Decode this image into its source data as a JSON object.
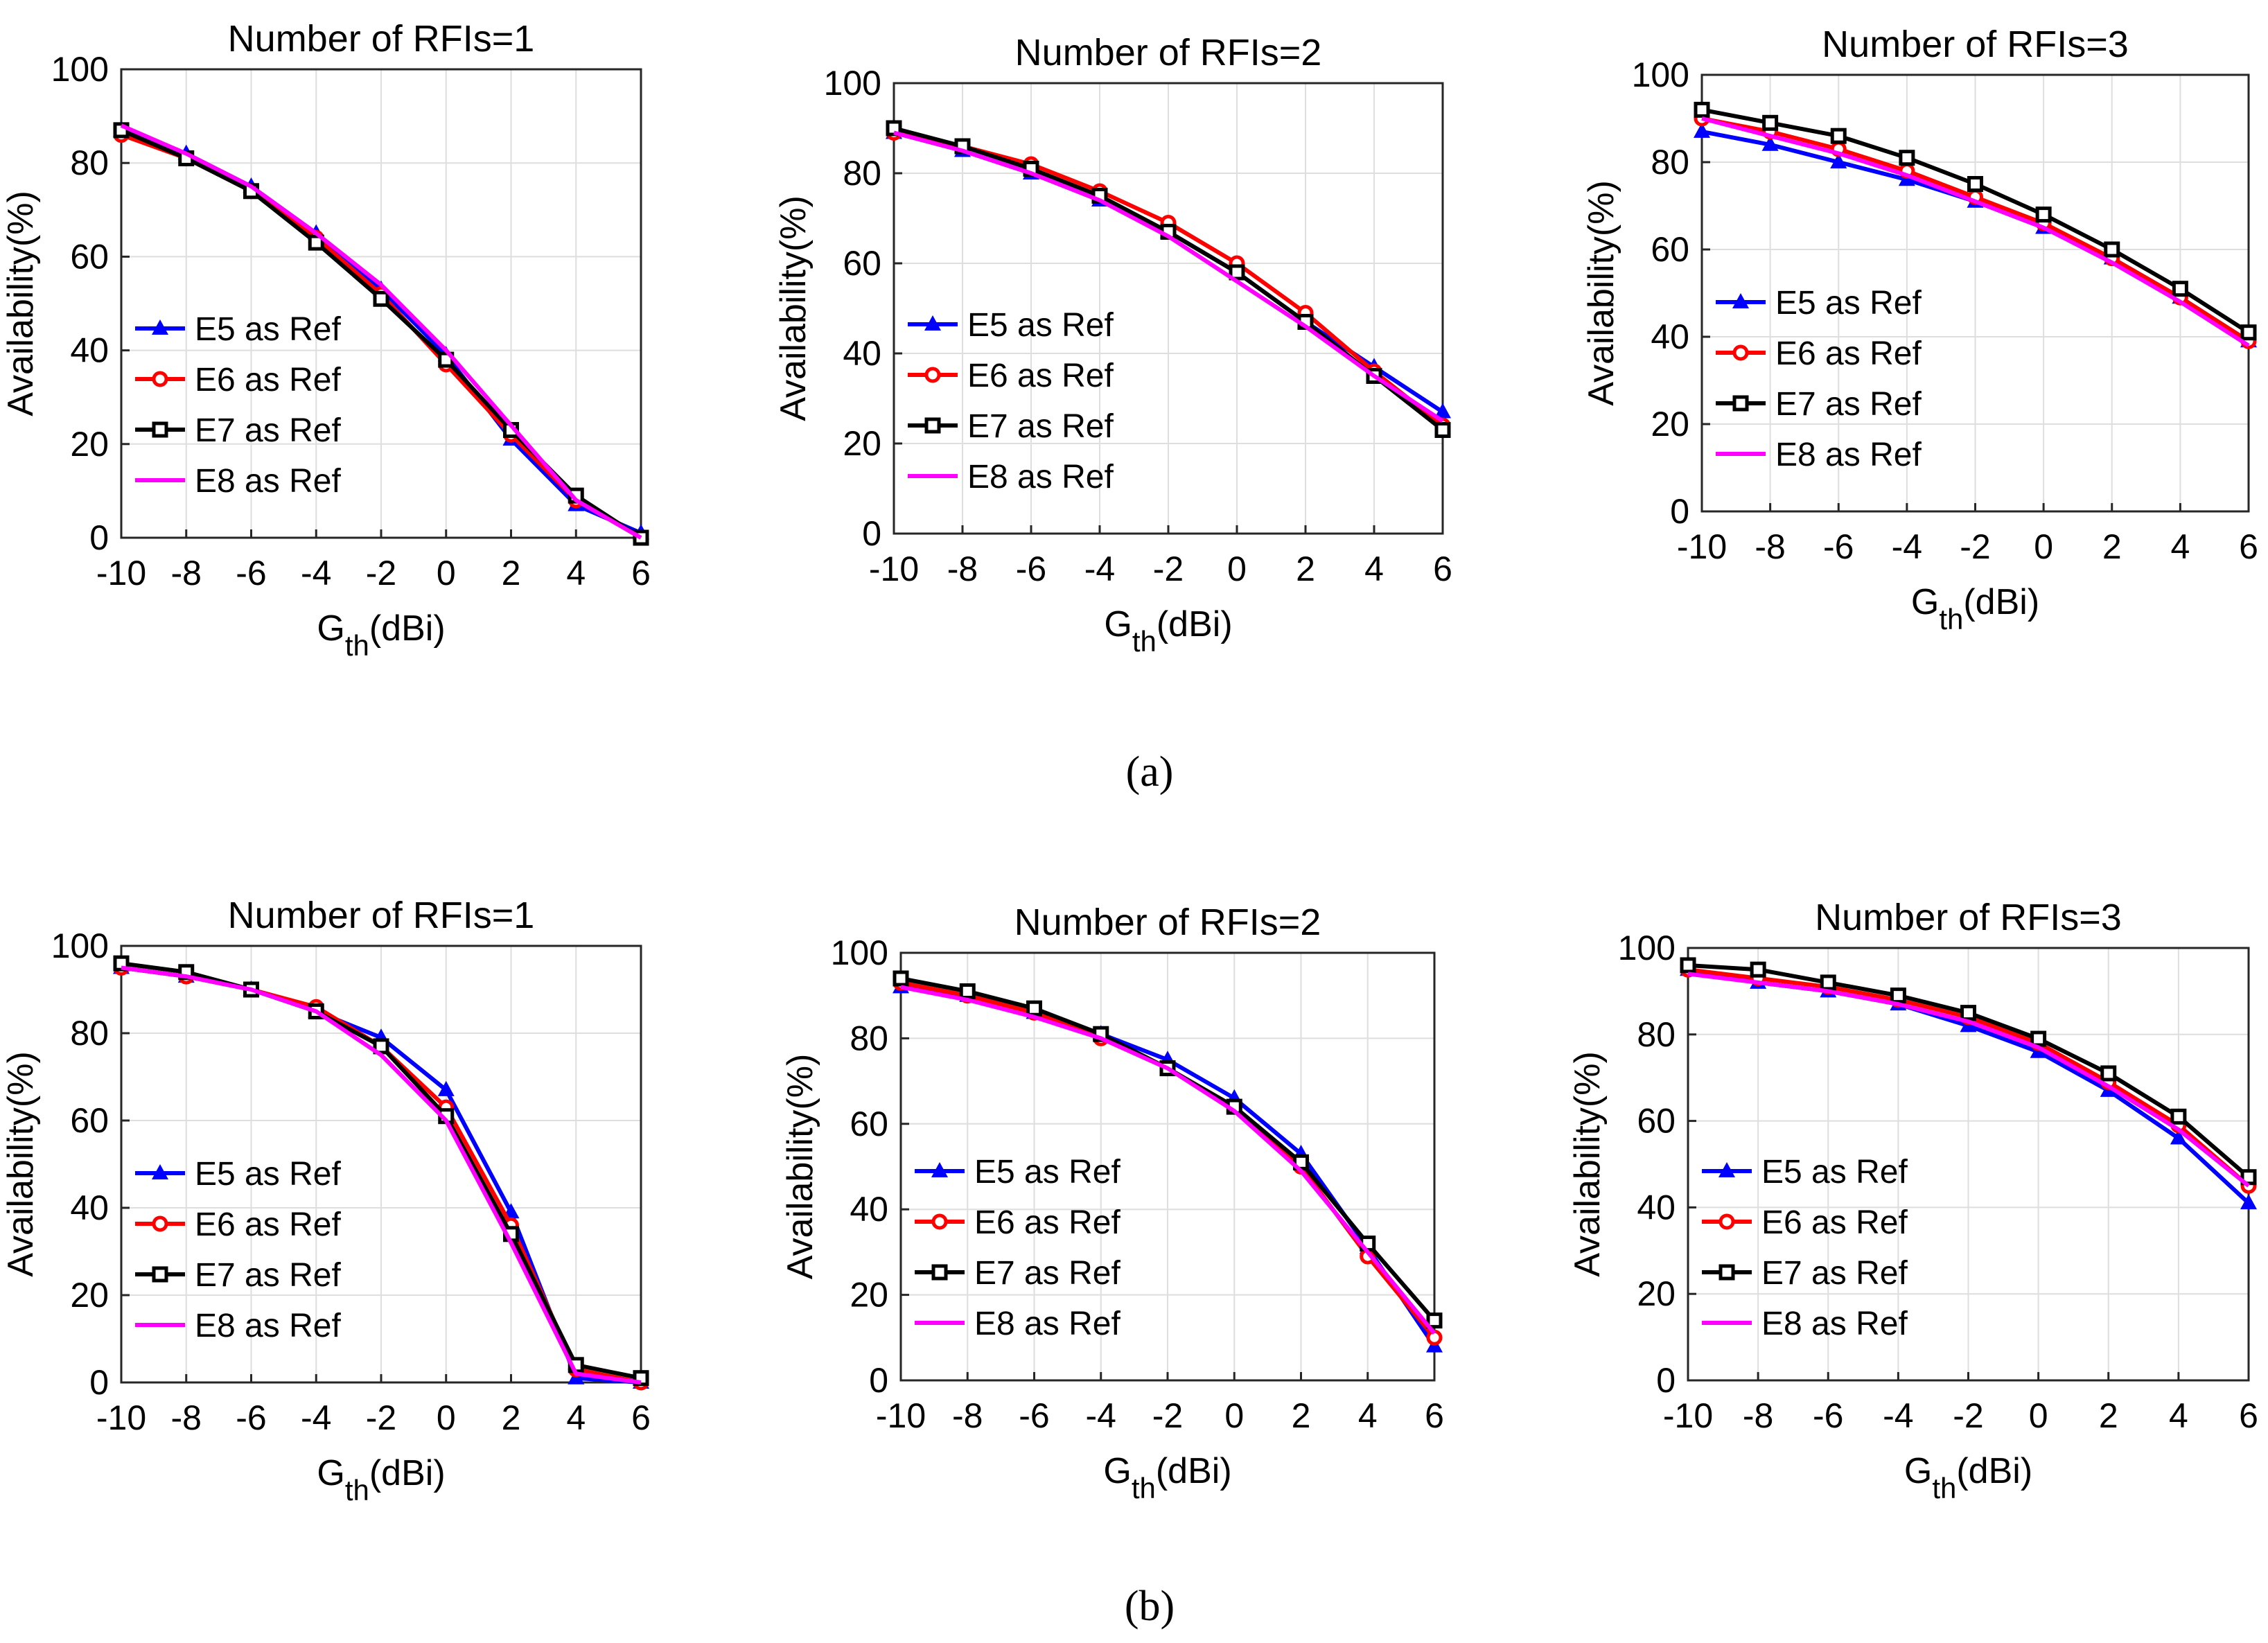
{
  "figure_labels": [
    "(a)",
    "(b)"
  ],
  "legend_entries": [
    "E5 as Ref",
    "E6 as Ref",
    "E7 as Ref",
    "E8 as Ref"
  ],
  "series_colors": {
    "E5 as Ref": "#0000ff",
    "E6 as Ref": "#ff0000",
    "E7 as Ref": "#000000",
    "E8 as Ref": "#ff00ff"
  },
  "series_markers": {
    "E5 as Ref": "triangle",
    "E6 as Ref": "circle",
    "E7 as Ref": "square",
    "E8 as Ref": "none"
  },
  "chart_data": [
    {
      "type": "line",
      "group": "(a)",
      "title": "Number of RFIs=1",
      "xlabel": "G_th(dBi)",
      "ylabel": "Availability(%)",
      "xlim": [
        -10,
        6
      ],
      "ylim": [
        0,
        100
      ],
      "grid": true,
      "legend_position": "bottom-left",
      "x": [
        -10,
        -8,
        -6,
        -4,
        -2,
        0,
        2,
        4,
        6
      ],
      "xticks": [
        "-10",
        "-8",
        "-6",
        "-4",
        "-2",
        "0",
        "2",
        "4",
        "6"
      ],
      "yticks": [
        "0",
        "20",
        "40",
        "60",
        "80",
        "100"
      ],
      "series": [
        {
          "name": "E5 as Ref",
          "values": [
            87,
            82,
            75,
            65,
            53,
            39,
            21,
            7,
            1
          ]
        },
        {
          "name": "E6 as Ref",
          "values": [
            86,
            81,
            74,
            64,
            52,
            37,
            22,
            8,
            0
          ]
        },
        {
          "name": "E7 as Ref",
          "values": [
            87,
            81,
            74,
            63,
            51,
            38,
            23,
            9,
            0
          ]
        },
        {
          "name": "E8 as Ref",
          "values": [
            88,
            82,
            75,
            65,
            54,
            40,
            24,
            8,
            0
          ]
        }
      ]
    },
    {
      "type": "line",
      "group": "(a)",
      "title": "Number of RFIs=2",
      "xlabel": "G_th(dBi)",
      "ylabel": "Availability(%)",
      "xlim": [
        -10,
        6
      ],
      "ylim": [
        0,
        100
      ],
      "grid": true,
      "legend_position": "bottom-left",
      "x": [
        -10,
        -8,
        -6,
        -4,
        -2,
        0,
        2,
        4,
        6
      ],
      "xticks": [
        "-10",
        "-8",
        "-6",
        "-4",
        "-2",
        "0",
        "2",
        "4",
        "6"
      ],
      "yticks": [
        "0",
        "20",
        "40",
        "60",
        "80",
        "100"
      ],
      "series": [
        {
          "name": "E5 as Ref",
          "values": [
            89,
            85,
            80,
            74,
            67,
            58,
            47,
            37,
            27
          ]
        },
        {
          "name": "E6 as Ref",
          "values": [
            89,
            86,
            82,
            76,
            69,
            60,
            49,
            36,
            24
          ]
        },
        {
          "name": "E7 as Ref",
          "values": [
            90,
            86,
            81,
            75,
            67,
            58,
            47,
            35,
            23
          ]
        },
        {
          "name": "E8 as Ref",
          "values": [
            89,
            85,
            80,
            74,
            66,
            56,
            46,
            35,
            25
          ]
        }
      ]
    },
    {
      "type": "line",
      "group": "(a)",
      "title": "Number of RFIs=3",
      "xlabel": "G_th(dBi)",
      "ylabel": "Availability(%)",
      "xlim": [
        -10,
        6
      ],
      "ylim": [
        0,
        100
      ],
      "grid": true,
      "legend_position": "bottom-left",
      "x": [
        -10,
        -8,
        -6,
        -4,
        -2,
        0,
        2,
        4,
        6
      ],
      "xticks": [
        "-10",
        "-8",
        "-6",
        "-4",
        "-2",
        "0",
        "2",
        "4",
        "6"
      ],
      "yticks": [
        "0",
        "20",
        "40",
        "60",
        "80",
        "100"
      ],
      "series": [
        {
          "name": "E5 as Ref",
          "values": [
            87,
            84,
            80,
            76,
            71,
            65,
            58,
            49,
            39
          ]
        },
        {
          "name": "E6 as Ref",
          "values": [
            90,
            87,
            83,
            78,
            72,
            66,
            58,
            49,
            39
          ]
        },
        {
          "name": "E7 as Ref",
          "values": [
            92,
            89,
            86,
            81,
            75,
            68,
            60,
            51,
            41
          ]
        },
        {
          "name": "E8 as Ref",
          "values": [
            90,
            86,
            82,
            77,
            71,
            65,
            57,
            48,
            38
          ]
        }
      ]
    },
    {
      "type": "line",
      "group": "(b)",
      "title": "Number of RFIs=1",
      "xlabel": "G_th(dBi)",
      "ylabel": "Availability(%)",
      "xlim": [
        -10,
        6
      ],
      "ylim": [
        0,
        100
      ],
      "grid": true,
      "legend_position": "bottom-left",
      "x": [
        -10,
        -8,
        -6,
        -4,
        -2,
        0,
        2,
        4,
        6
      ],
      "xticks": [
        "-10",
        "-8",
        "-6",
        "-4",
        "-2",
        "0",
        "2",
        "4",
        "6"
      ],
      "yticks": [
        "0",
        "20",
        "40",
        "60",
        "80",
        "100"
      ],
      "series": [
        {
          "name": "E5 as Ref",
          "values": [
            95,
            93,
            90,
            85,
            79,
            67,
            39,
            1,
            0
          ]
        },
        {
          "name": "E6 as Ref",
          "values": [
            95,
            93,
            90,
            86,
            77,
            63,
            36,
            3,
            0
          ]
        },
        {
          "name": "E7 as Ref",
          "values": [
            96,
            94,
            90,
            85,
            77,
            61,
            34,
            4,
            1
          ]
        },
        {
          "name": "E8 as Ref",
          "values": [
            95,
            93,
            90,
            85,
            75,
            60,
            32,
            2,
            0
          ]
        }
      ]
    },
    {
      "type": "line",
      "group": "(b)",
      "title": "Number of RFIs=2",
      "xlabel": "G_th(dBi)",
      "ylabel": "Availability(%)",
      "xlim": [
        -10,
        6
      ],
      "ylim": [
        0,
        100
      ],
      "grid": true,
      "legend_position": "bottom-left",
      "x": [
        -10,
        -8,
        -6,
        -4,
        -2,
        0,
        2,
        4,
        6
      ],
      "xticks": [
        "-10",
        "-8",
        "-6",
        "-4",
        "-2",
        "0",
        "2",
        "4",
        "6"
      ],
      "yticks": [
        "0",
        "20",
        "40",
        "60",
        "80",
        "100"
      ],
      "series": [
        {
          "name": "E5 as Ref",
          "values": [
            92,
            90,
            86,
            81,
            75,
            66,
            53,
            31,
            8
          ]
        },
        {
          "name": "E6 as Ref",
          "values": [
            93,
            90,
            86,
            80,
            73,
            64,
            50,
            29,
            10
          ]
        },
        {
          "name": "E7 as Ref",
          "values": [
            94,
            91,
            87,
            81,
            73,
            64,
            51,
            32,
            14
          ]
        },
        {
          "name": "E8 as Ref",
          "values": [
            92,
            89,
            85,
            80,
            73,
            63,
            49,
            30,
            11
          ]
        }
      ]
    },
    {
      "type": "line",
      "group": "(b)",
      "title": "Number of RFIs=3",
      "xlabel": "G_th(dBi)",
      "ylabel": "Availability(%)",
      "xlim": [
        -10,
        6
      ],
      "ylim": [
        0,
        100
      ],
      "grid": true,
      "legend_position": "bottom-left",
      "x": [
        -10,
        -8,
        -6,
        -4,
        -2,
        0,
        2,
        4,
        6
      ],
      "xticks": [
        "-10",
        "-8",
        "-6",
        "-4",
        "-2",
        "0",
        "2",
        "4",
        "6"
      ],
      "yticks": [
        "0",
        "20",
        "40",
        "60",
        "80",
        "100"
      ],
      "series": [
        {
          "name": "E5 as Ref",
          "values": [
            95,
            92,
            90,
            87,
            82,
            76,
            67,
            56,
            41
          ]
        },
        {
          "name": "E6 as Ref",
          "values": [
            95,
            93,
            91,
            88,
            84,
            78,
            69,
            59,
            45
          ]
        },
        {
          "name": "E7 as Ref",
          "values": [
            96,
            95,
            92,
            89,
            85,
            79,
            71,
            61,
            47
          ]
        },
        {
          "name": "E8 as Ref",
          "values": [
            94,
            92,
            90,
            87,
            83,
            77,
            68,
            58,
            45
          ]
        }
      ]
    }
  ]
}
